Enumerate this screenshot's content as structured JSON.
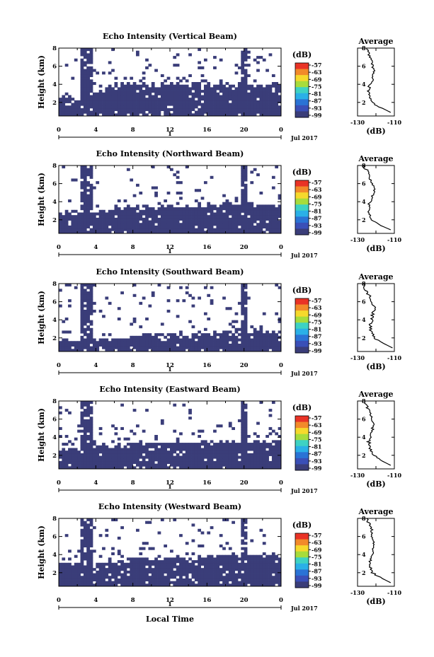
{
  "x_axis_title": "Local Time",
  "height_label": "Height (km)",
  "avg_title": "Average",
  "avg_unit": "(dB)",
  "colorbar_unit": "(dB)",
  "date_label": "Jul 2017",
  "day_label": "1",
  "x_ticks": [
    "0",
    "4",
    "8",
    "12",
    "16",
    "20",
    "0"
  ],
  "y_ticks": [
    "2",
    "4",
    "6",
    "8"
  ],
  "avg_x_ticks": [
    "-130",
    "-110"
  ],
  "colorbar_ticks": [
    "-57",
    "-63",
    "-69",
    "-75",
    "-81",
    "-87",
    "-93",
    "-99"
  ],
  "colors": {
    "echo": "#3a3d79",
    "colorbar": [
      "#e93326",
      "#f28a2a",
      "#f6d92c",
      "#a7dc3c",
      "#3ed2c3",
      "#2ab0e7",
      "#2a73d5",
      "#3a4fb7",
      "#3a3d79"
    ]
  },
  "chart_data": [
    {
      "type": "heatmap",
      "title": "Echo Intensity (Vertical Beam)",
      "xlabel": "Local Time",
      "ylabel": "Height (km)",
      "xlim": [
        0,
        24
      ],
      "ylim": [
        0.5,
        8
      ],
      "colorbar_range": [
        -99,
        -57
      ],
      "layer_top_km": [
        [
          0,
          2.5
        ],
        [
          3.5,
          2.5
        ],
        [
          4.5,
          3.6
        ],
        [
          8,
          4.0
        ],
        [
          16,
          4.0
        ],
        [
          20,
          4.0
        ],
        [
          24,
          4.0
        ]
      ],
      "average": {
        "xlim": [
          -130,
          -110
        ],
        "height_km": [
          0.9,
          1.5,
          2,
          2.5,
          3,
          3.5,
          4,
          4.5,
          5,
          5.5,
          6,
          6.5,
          7,
          7.5,
          8
        ],
        "values_db": [
          -112,
          -118,
          -122,
          -123,
          -124,
          -124,
          -123,
          -122,
          -122,
          -121,
          -122,
          -122,
          -123,
          -124,
          -125
        ]
      }
    },
    {
      "type": "heatmap",
      "title": "Echo Intensity (Northward Beam)",
      "xlabel": "Local Time",
      "ylabel": "Height (km)",
      "xlim": [
        0,
        24
      ],
      "ylim": [
        0.5,
        8
      ],
      "colorbar_range": [
        -99,
        -57
      ],
      "layer_top_km": [
        [
          0,
          2.8
        ],
        [
          6,
          3.0
        ],
        [
          8,
          3.5
        ],
        [
          16,
          3.6
        ],
        [
          20,
          3.8
        ],
        [
          24,
          3.6
        ]
      ],
      "average": {
        "xlim": [
          -130,
          -110
        ],
        "height_km": [
          0.9,
          1.5,
          2,
          2.5,
          3,
          3.5,
          4,
          4.5,
          5,
          5.5,
          6,
          6.5,
          7,
          7.5,
          8
        ],
        "values_db": [
          -112,
          -119,
          -122,
          -123,
          -124,
          -124,
          -123,
          -122,
          -121,
          -121,
          -122,
          -123,
          -124,
          -125,
          -127
        ]
      }
    },
    {
      "type": "heatmap",
      "title": "Echo Intensity (Southward Beam)",
      "xlabel": "Local Time",
      "ylabel": "Height (km)",
      "xlim": [
        0,
        24
      ],
      "ylim": [
        0.5,
        8
      ],
      "colorbar_range": [
        -99,
        -57
      ],
      "layer_top_km": [
        [
          0,
          1.8
        ],
        [
          6,
          2.0
        ],
        [
          8,
          2.3
        ],
        [
          16,
          2.5
        ],
        [
          20,
          2.8
        ],
        [
          24,
          2.6
        ]
      ],
      "average": {
        "xlim": [
          -130,
          -110
        ],
        "height_km": [
          0.9,
          1.5,
          2,
          2.5,
          3,
          3.5,
          4,
          4.5,
          5,
          5.5,
          6,
          6.5,
          7,
          7.5,
          8
        ],
        "values_db": [
          -111,
          -117,
          -121,
          -122,
          -123,
          -123,
          -122,
          -122,
          -121,
          -121,
          -122,
          -123,
          -125,
          -126,
          -127
        ]
      }
    },
    {
      "type": "heatmap",
      "title": "Echo Intensity (Eastward Beam)",
      "xlabel": "Local Time",
      "ylabel": "Height (km)",
      "xlim": [
        0,
        24
      ],
      "ylim": [
        0.5,
        8
      ],
      "colorbar_range": [
        -99,
        -57
      ],
      "layer_top_km": [
        [
          0,
          2.6
        ],
        [
          6,
          2.9
        ],
        [
          8,
          3.3
        ],
        [
          16,
          3.5
        ],
        [
          20,
          3.6
        ],
        [
          24,
          3.6
        ]
      ],
      "average": {
        "xlim": [
          -130,
          -110
        ],
        "height_km": [
          0.9,
          1.5,
          2,
          2.5,
          3,
          3.5,
          4,
          4.5,
          5,
          5.5,
          6,
          6.5,
          7,
          7.5,
          8
        ],
        "values_db": [
          -112,
          -118,
          -121,
          -123,
          -123,
          -124,
          -123,
          -122,
          -122,
          -121,
          -122,
          -123,
          -124,
          -125,
          -126
        ]
      }
    },
    {
      "type": "heatmap",
      "title": "Echo Intensity (Westward Beam)",
      "xlabel": "Local Time",
      "ylabel": "Height (km)",
      "xlim": [
        0,
        24
      ],
      "ylim": [
        0.5,
        8
      ],
      "colorbar_range": [
        -99,
        -57
      ],
      "layer_top_km": [
        [
          0,
          3.0
        ],
        [
          6,
          3.2
        ],
        [
          8,
          3.6
        ],
        [
          16,
          3.8
        ],
        [
          20,
          4.0
        ],
        [
          24,
          3.8
        ]
      ],
      "average": {
        "xlim": [
          -130,
          -110
        ],
        "height_km": [
          0.9,
          1.5,
          2,
          2.5,
          3,
          3.5,
          4,
          4.5,
          5,
          5.5,
          6,
          6.5,
          7,
          7.5,
          8
        ],
        "values_db": [
          -112,
          -118,
          -122,
          -123,
          -123,
          -123,
          -122,
          -122,
          -121,
          -121,
          -122,
          -122,
          -123,
          -124,
          -125
        ]
      }
    }
  ]
}
